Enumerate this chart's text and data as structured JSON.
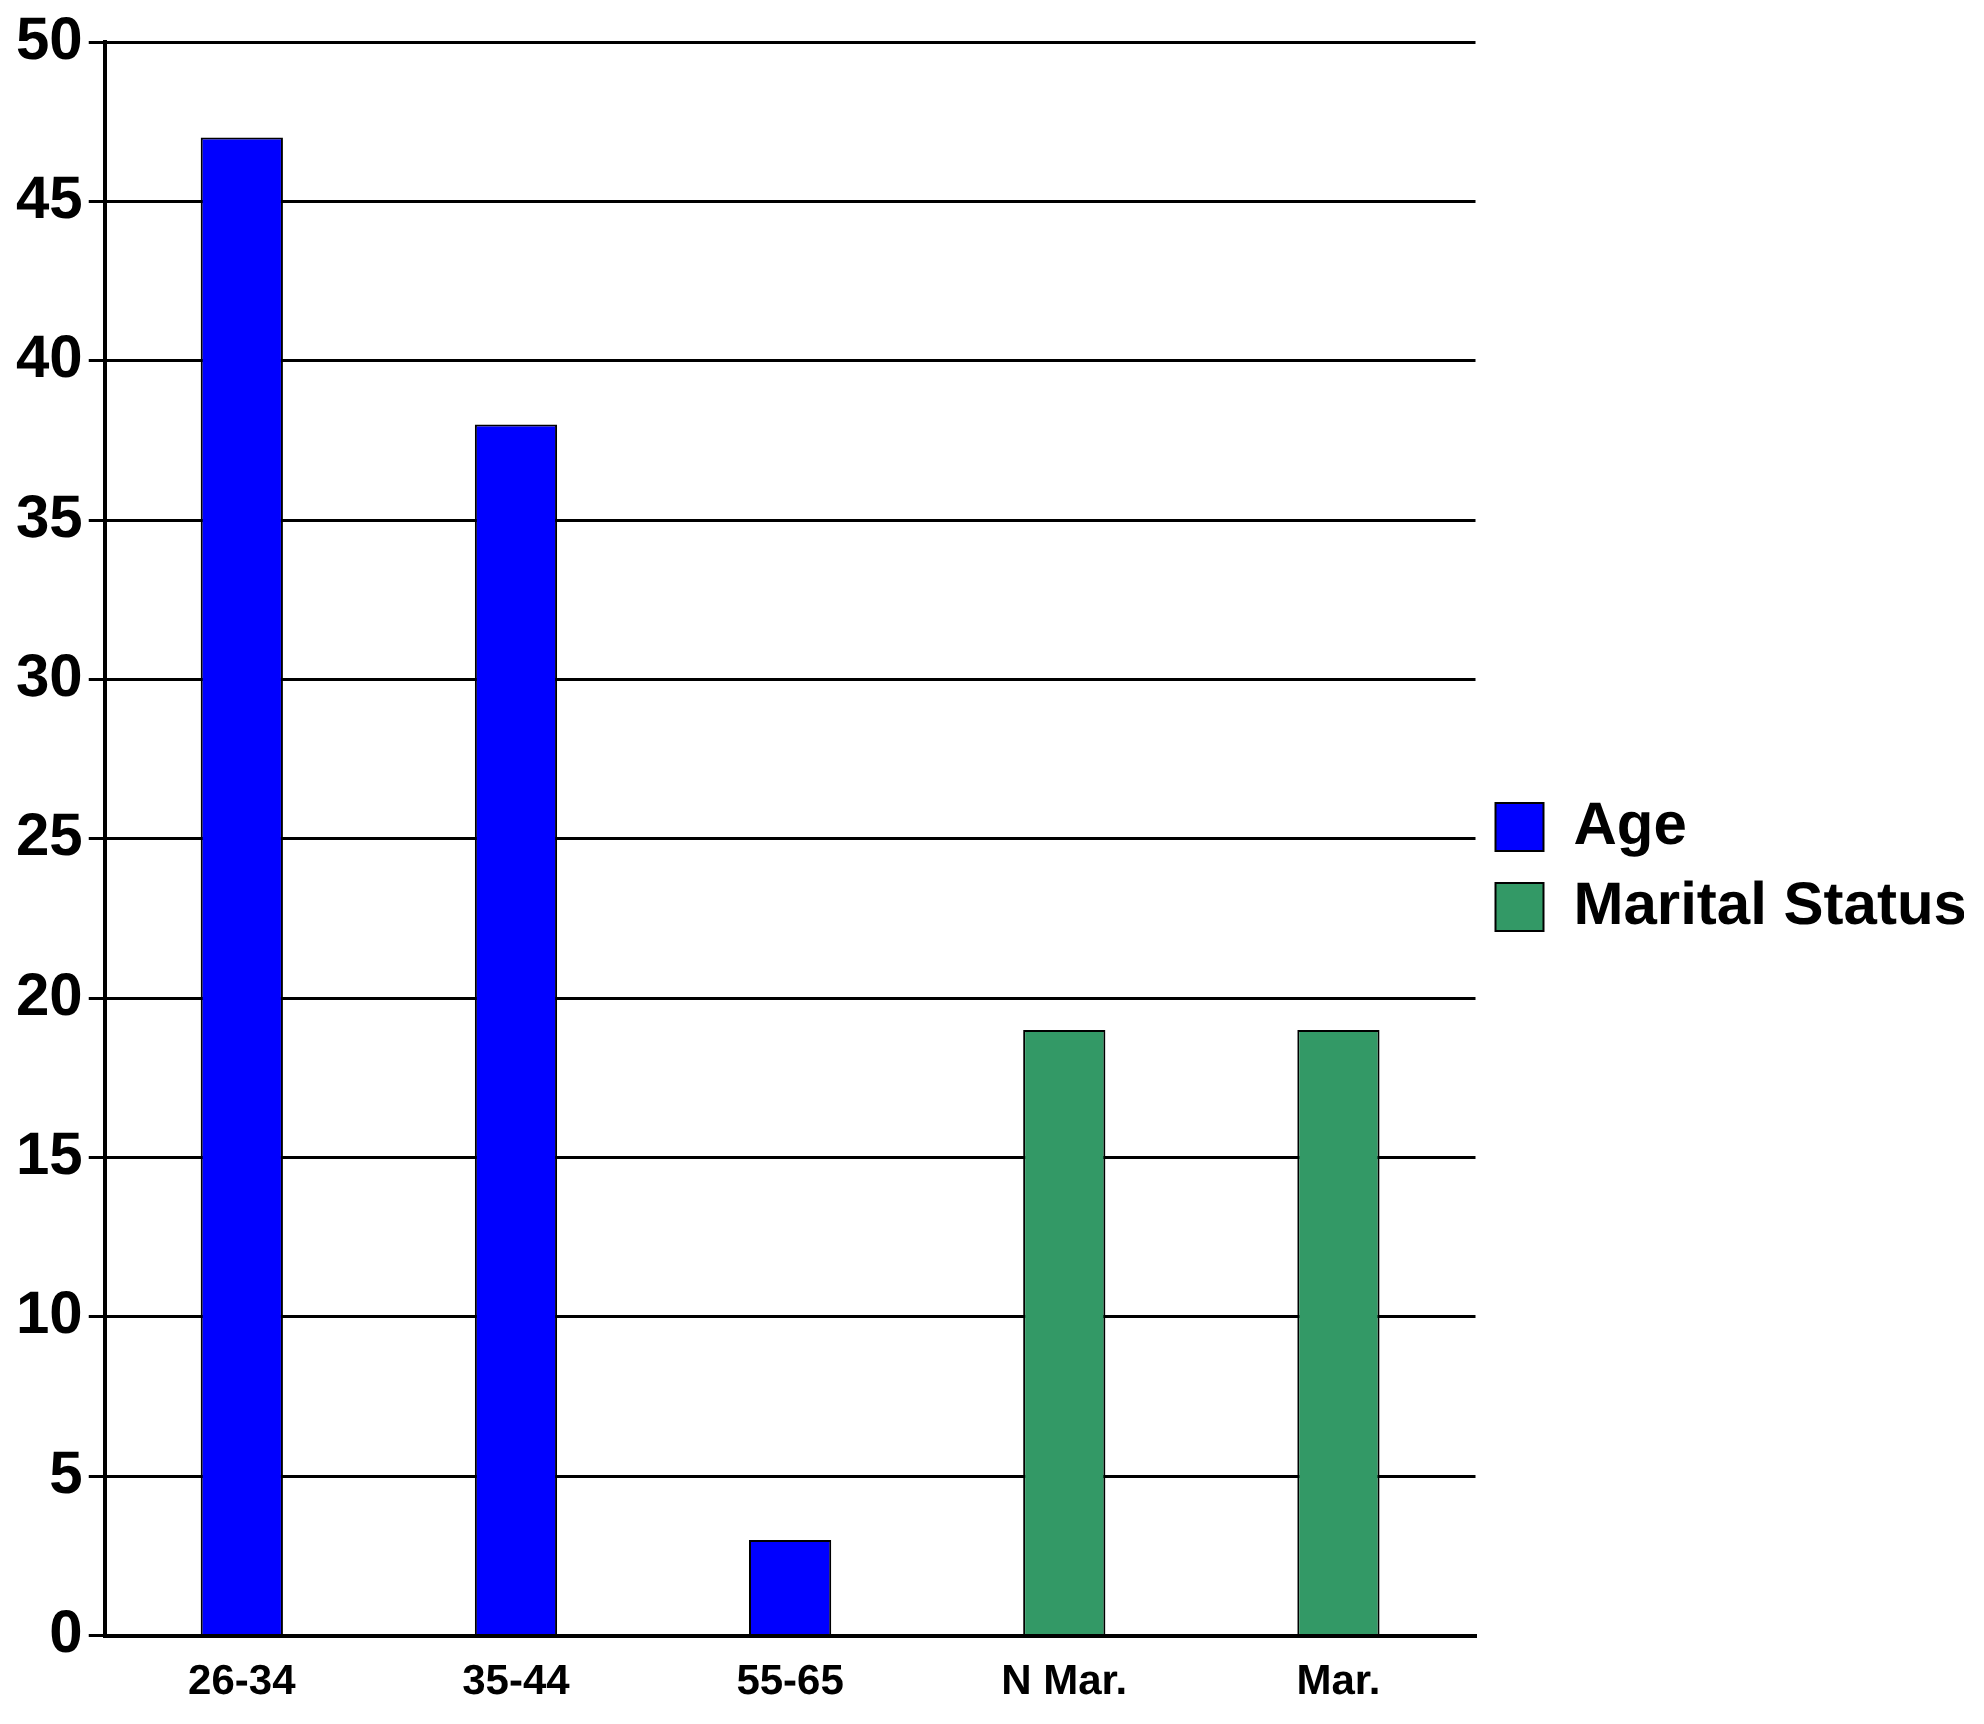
{
  "chart_data": {
    "type": "bar",
    "categories": [
      "26-34",
      "35-44",
      "55-65",
      "N Mar.",
      "Mar."
    ],
    "series": [
      {
        "name": "Age",
        "color": "#0000ff",
        "values": [
          47,
          38,
          3,
          null,
          null
        ]
      },
      {
        "name": "Marital Status",
        "color": "#339966",
        "values": [
          null,
          null,
          null,
          19,
          19
        ]
      }
    ],
    "ylim": [
      0,
      50
    ],
    "yticks": [
      0,
      5,
      10,
      15,
      20,
      25,
      30,
      35,
      40,
      45,
      50
    ],
    "grid": "y",
    "legend": "right"
  }
}
